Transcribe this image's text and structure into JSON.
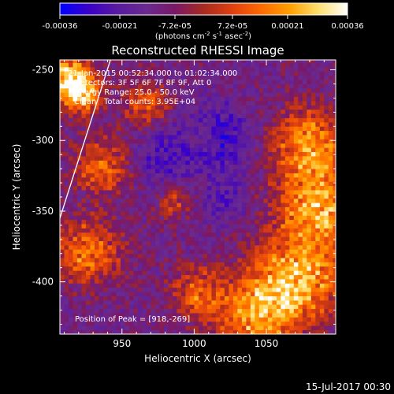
{
  "chart_data": {
    "type": "heatmap",
    "title": "Reconstructed RHESSI Image",
    "xlabel": "Heliocentric X (arcsec)",
    "ylabel": "Heliocentric Y (arcsec)",
    "xlim": [
      907,
      1098
    ],
    "ylim": [
      -437,
      -243
    ],
    "x_ticks": [
      950,
      1000,
      1050
    ],
    "y_ticks": [
      -400,
      -350,
      -300,
      -250
    ],
    "colorbar": {
      "ticks": [
        "-0.00036",
        "-0.00021",
        "-7.2e-05",
        "7.2e-05",
        "0.00021",
        "0.00036"
      ],
      "tick_values": [
        -0.00036,
        -0.00021,
        -7.2e-05,
        7.2e-05,
        0.00021,
        0.00036
      ],
      "range": [
        -0.00036,
        0.00036
      ],
      "unit_label": "(photons cm",
      "unit_exp1": "-2",
      "unit_mid": " s",
      "unit_exp2": "-1",
      "unit_mid2": " asec",
      "unit_exp3": "-2",
      "unit_end": ")",
      "colormap": [
        "#0000ff",
        "#3a00c8",
        "#5a1aa0",
        "#6a2a90",
        "#7a1868",
        "#a82a20",
        "#e04010",
        "#ff6a00",
        "#ffa000",
        "#ffe070",
        "#ffffff"
      ]
    },
    "annotations": {
      "time": "21-Jan-2015 00:52:34.000 to 01:02:34.000",
      "detectors": "Detectors: 3F 5F 6F 7F 8F 9F, Att 0",
      "energy": "Energy Range: 25.0 - 50.0 keV",
      "clean": "Clean   Total counts: 3.95E+04",
      "peak": "Position of Peak = [918,-269]"
    },
    "limb_line": {
      "x": [
        907,
        942
      ],
      "y": [
        -355,
        -243
      ]
    },
    "hot_regions": [
      {
        "x": 912,
        "y": -256,
        "r": 14,
        "level": 0.97
      },
      {
        "x": 921,
        "y": -270,
        "r": 12,
        "level": 0.92
      },
      {
        "x": 1078,
        "y": -305,
        "r": 26,
        "level": 0.8
      },
      {
        "x": 1085,
        "y": -350,
        "r": 28,
        "level": 0.82
      },
      {
        "x": 1070,
        "y": -400,
        "r": 30,
        "level": 0.86
      },
      {
        "x": 1040,
        "y": -425,
        "r": 26,
        "level": 0.78
      },
      {
        "x": 935,
        "y": -320,
        "r": 20,
        "level": 0.68
      },
      {
        "x": 925,
        "y": -380,
        "r": 22,
        "level": 0.74
      },
      {
        "x": 965,
        "y": -275,
        "r": 16,
        "level": 0.66
      },
      {
        "x": 1000,
        "y": -410,
        "r": 18,
        "level": 0.66
      },
      {
        "x": 985,
        "y": -345,
        "r": 12,
        "level": 0.56
      },
      {
        "x": 1005,
        "y": -300,
        "r": 10,
        "level": 0.5
      }
    ],
    "cold_regions": [
      {
        "x": 1015,
        "y": -300,
        "r": 24,
        "level": 0.1
      },
      {
        "x": 975,
        "y": -315,
        "r": 22,
        "level": 0.18
      },
      {
        "x": 1020,
        "y": -345,
        "r": 16,
        "level": 0.2
      }
    ]
  },
  "footer": {
    "date": "15-Jul-2017 00:30"
  }
}
